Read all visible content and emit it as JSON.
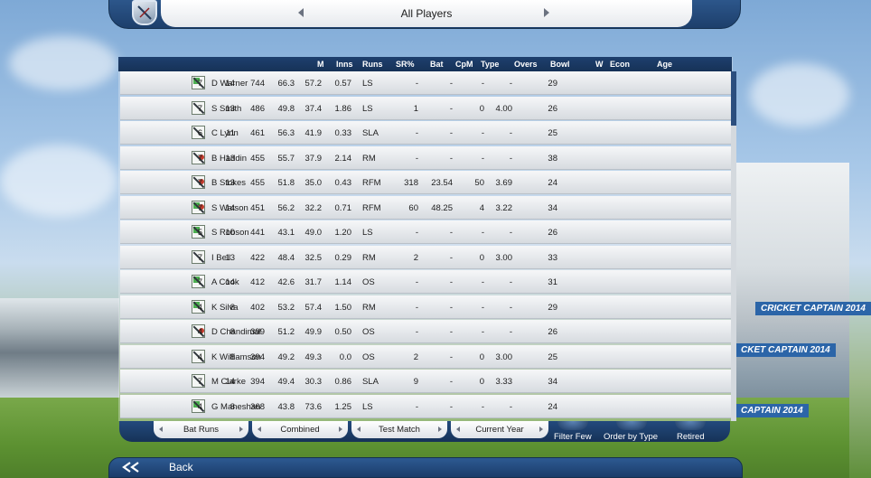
{
  "header": {
    "title": "All Players"
  },
  "columns": [
    "M",
    "Inns",
    "Runs",
    "SR%",
    "Bat",
    "CpM",
    "Type",
    "Overs",
    "Bowl",
    "W",
    "Econ",
    "Age"
  ],
  "players": [
    {
      "name": "D Warner",
      "M": "7",
      "Inns": "14",
      "Runs": "744",
      "SR": "66.3",
      "Bat": "57.2",
      "CpM": "0.57",
      "Type": "LS",
      "Overs": "-",
      "Bowl": "-",
      "W": "-",
      "Econ": "-",
      "Age": "29",
      "role": "batsman-left"
    },
    {
      "name": "S Smith",
      "M": "7",
      "Inns": "13",
      "Runs": "486",
      "SR": "49.8",
      "Bat": "37.4",
      "CpM": "1.86",
      "Type": "LS",
      "Overs": "1",
      "Bowl": "-",
      "W": "0",
      "Econ": "4.00",
      "Age": "26",
      "role": "batsman"
    },
    {
      "name": "C Lynn",
      "M": "6",
      "Inns": "11",
      "Runs": "461",
      "SR": "56.3",
      "Bat": "41.9",
      "CpM": "0.33",
      "Type": "SLA",
      "Overs": "-",
      "Bowl": "-",
      "W": "-",
      "Econ": "-",
      "Age": "25",
      "role": "batsman"
    },
    {
      "name": "B Haddin",
      "M": "7",
      "Inns": "13",
      "Runs": "455",
      "SR": "55.7",
      "Bat": "37.9",
      "CpM": "2.14",
      "Type": "RM",
      "Overs": "-",
      "Bowl": "-",
      "W": "-",
      "Econ": "-",
      "Age": "38",
      "role": "allrounder"
    },
    {
      "name": "B Stokes",
      "M": "7",
      "Inns": "13",
      "Runs": "455",
      "SR": "51.8",
      "Bat": "35.0",
      "CpM": "0.43",
      "Type": "RFM",
      "Overs": "318",
      "Bowl": "23.54",
      "W": "50",
      "Econ": "3.69",
      "Age": "24",
      "role": "allrounder"
    },
    {
      "name": "S Watson",
      "M": "7",
      "Inns": "14",
      "Runs": "451",
      "SR": "56.2",
      "Bat": "32.2",
      "CpM": "0.71",
      "Type": "RFM",
      "Overs": "60",
      "Bowl": "48.25",
      "W": "4",
      "Econ": "3.22",
      "Age": "34",
      "role": "allrounder-left"
    },
    {
      "name": "S Robson",
      "M": "5",
      "Inns": "10",
      "Runs": "441",
      "SR": "43.1",
      "Bat": "49.0",
      "CpM": "1.20",
      "Type": "LS",
      "Overs": "-",
      "Bowl": "-",
      "W": "-",
      "Econ": "-",
      "Age": "26",
      "role": "batsman-left"
    },
    {
      "name": "I Bell",
      "M": "7",
      "Inns": "13",
      "Runs": "422",
      "SR": "48.4",
      "Bat": "32.5",
      "CpM": "0.29",
      "Type": "RM",
      "Overs": "2",
      "Bowl": "-",
      "W": "0",
      "Econ": "3.00",
      "Age": "33",
      "role": "batsman"
    },
    {
      "name": "A Cook",
      "M": "7",
      "Inns": "14",
      "Runs": "412",
      "SR": "42.6",
      "Bat": "31.7",
      "CpM": "1.14",
      "Type": "OS",
      "Overs": "-",
      "Bowl": "-",
      "W": "-",
      "Econ": "-",
      "Age": "31",
      "role": "batsman-left"
    },
    {
      "name": "K Silva",
      "M": "4",
      "Inns": "8",
      "Runs": "402",
      "SR": "53.2",
      "Bat": "57.4",
      "CpM": "1.50",
      "Type": "RM",
      "Overs": "-",
      "Bowl": "-",
      "W": "-",
      "Econ": "-",
      "Age": "29",
      "role": "batsman-left"
    },
    {
      "name": "D Chandimal",
      "M": "4",
      "Inns": "8",
      "Runs": "399",
      "SR": "51.2",
      "Bat": "49.9",
      "CpM": "0.50",
      "Type": "OS",
      "Overs": "-",
      "Bowl": "-",
      "W": "-",
      "Econ": "-",
      "Age": "26",
      "role": "keeper"
    },
    {
      "name": "K Williamson",
      "M": "4",
      "Inns": "8",
      "Runs": "394",
      "SR": "49.2",
      "Bat": "49.3",
      "CpM": "0.0",
      "Type": "OS",
      "Overs": "2",
      "Bowl": "-",
      "W": "0",
      "Econ": "3.00",
      "Age": "25",
      "role": "batsman"
    },
    {
      "name": "M Clarke",
      "M": "7",
      "Inns": "14",
      "Runs": "394",
      "SR": "49.4",
      "Bat": "30.3",
      "CpM": "0.86",
      "Type": "SLA",
      "Overs": "9",
      "Bowl": "-",
      "W": "0",
      "Econ": "3.33",
      "Age": "34",
      "role": "batsman"
    },
    {
      "name": "G Maneshan",
      "M": "4",
      "Inns": "8",
      "Runs": "368",
      "SR": "43.8",
      "Bat": "73.6",
      "CpM": "1.25",
      "Type": "LS",
      "Overs": "-",
      "Bowl": "-",
      "W": "-",
      "Econ": "-",
      "Age": "24",
      "role": "batsman-left"
    }
  ],
  "tabs": [
    {
      "label": "Bat Runs"
    },
    {
      "label": "Combined"
    },
    {
      "label": "Test Match"
    },
    {
      "label": "Current Year"
    }
  ],
  "buttons": {
    "filter": "Filter Few",
    "order": "Order by Type",
    "retired": "Retired"
  },
  "back": {
    "label": "Back"
  },
  "banners": [
    "CRICKET CAPTAIN 2014",
    "CKET CAPTAIN 2014",
    "CAPTAIN 2014"
  ],
  "colors": {
    "header": "#1e3f6e",
    "accent": "#2c65a8",
    "row": "#e3e6ea"
  }
}
